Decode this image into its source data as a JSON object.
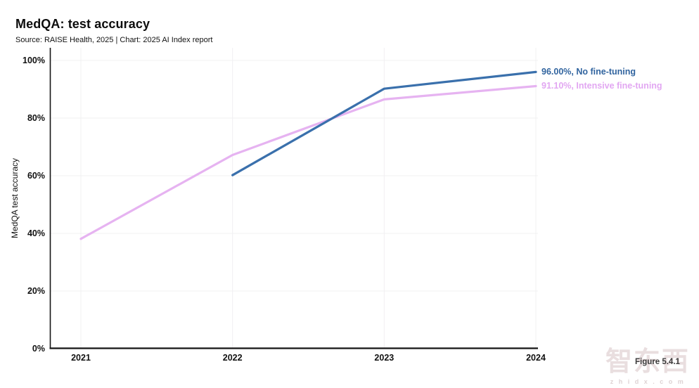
{
  "header": {
    "title": "MedQA: test accuracy",
    "subtitle": "Source: RAISE Health, 2025 | Chart: 2025 AI Index report"
  },
  "chart_data": {
    "type": "line",
    "title": "MedQA: test accuracy",
    "xlabel": "",
    "ylabel": "MedQA test accuracy",
    "x_ticks": [
      "2021",
      "2022",
      "2023",
      "2024"
    ],
    "y_ticks": [
      "0%",
      "20%",
      "40%",
      "60%",
      "80%",
      "100%"
    ],
    "ylim": [
      0,
      100
    ],
    "grid": true,
    "legend_position": "end-of-line labels, right of plot",
    "series": [
      {
        "name": "No fine-tuning",
        "line_color": "#3a70ac",
        "label_color": "#31649f",
        "x": [
          2022,
          2023,
          2024
        ],
        "values": [
          60.2,
          90.2,
          96.0
        ],
        "final_value_label": "96.00%",
        "end_label": "96.00%, No fine-tuning"
      },
      {
        "name": "Intensive fine-tuning",
        "line_color": "#e6b3f1",
        "label_color": "#e2a7f2",
        "x": [
          2021,
          2022,
          2023,
          2024
        ],
        "values": [
          38.1,
          67.2,
          86.5,
          91.1
        ],
        "final_value_label": "91.10%",
        "end_label": "91.10%, Intensive fine-tuning"
      }
    ],
    "axis_color": "#141414",
    "grid_color": "#f1f0f2"
  },
  "footer": {
    "figure_label": "Figure 5.4.1",
    "watermark_logo": "智东西",
    "watermark_domain": "z h i d x . c o m"
  }
}
